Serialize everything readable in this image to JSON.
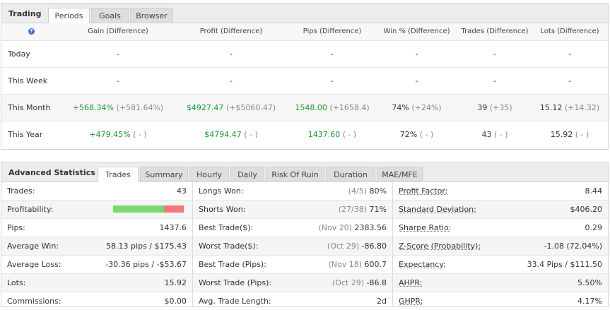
{
  "trading": {
    "title": "Trading",
    "tabs": [
      "Periods",
      "Goals",
      "Browser"
    ],
    "help_glyph": "?",
    "columns": [
      "Gain (Difference)",
      "Profit (Difference)",
      "Pips (Difference)",
      "Win % (Difference)",
      "Trades (Difference)",
      "Lots (Difference)"
    ],
    "rows": [
      {
        "label": "Today",
        "gain": "-",
        "gain_diff": "",
        "profit": "-",
        "profit_diff": "",
        "pips": "-",
        "pips_diff": "",
        "win": "-",
        "win_diff": "",
        "trades": "-",
        "trades_diff": "",
        "lots": "-",
        "lots_diff": ""
      },
      {
        "label": "This Week",
        "gain": "-",
        "gain_diff": "",
        "profit": "-",
        "profit_diff": "",
        "pips": "-",
        "pips_diff": "",
        "win": "-",
        "win_diff": "",
        "trades": "-",
        "trades_diff": "",
        "lots": "-",
        "lots_diff": ""
      },
      {
        "label": "This Month",
        "gain": "+568.34%",
        "gain_diff": "(+581.64%)",
        "profit": "$4927.47",
        "profit_diff": "(+$5060.47)",
        "pips": "1548.00",
        "pips_diff": "(+1658.4)",
        "win": "74%",
        "win_diff": "(+24%)",
        "trades": "39",
        "trades_diff": "(+35)",
        "lots": "15.12",
        "lots_diff": "(+14.32)"
      },
      {
        "label": "This Year",
        "gain": "+479.45%",
        "gain_diff": "( - )",
        "profit": "$4794.47",
        "profit_diff": "( - )",
        "pips": "1437.60",
        "pips_diff": "( - )",
        "win": "72%",
        "win_diff": "( - )",
        "trades": "43",
        "trades_diff": "( - )",
        "lots": "15.92",
        "lots_diff": "( - )"
      }
    ]
  },
  "advanced": {
    "title": "Advanced Statistics",
    "tabs": [
      "Trades",
      "Summary",
      "Hourly",
      "Daily",
      "Risk Of Ruin",
      "Duration",
      "MAE/MFE"
    ],
    "col1": [
      {
        "label": "Trades:",
        "value": "43"
      },
      {
        "label": "Profitability:",
        "value": ""
      },
      {
        "label": "Pips:",
        "value": "1437.6"
      },
      {
        "label": "Average Win:",
        "value": "58.13 pips / $175.43"
      },
      {
        "label": "Average Loss:",
        "value": "-30.36 pips / -$53.67"
      },
      {
        "label": "Lots:",
        "value": "15.92"
      },
      {
        "label": "Commissions:",
        "value": "$0.00"
      }
    ],
    "profitability_win_fraction": 0.72,
    "colors": {
      "win_bar": "#77d96b",
      "loss_bar": "#f07a7a",
      "positive": "#1a9a2e"
    },
    "col2": [
      {
        "label": "Longs Won:",
        "note": "(4/5)",
        "value": "80%"
      },
      {
        "label": "Shorts Won:",
        "note": "(27/38)",
        "value": "71%"
      },
      {
        "label": "Best Trade($):",
        "note": "(Nov 20)",
        "value": "2383.56"
      },
      {
        "label": "Worst Trade($):",
        "note": "(Oct 29)",
        "value": "-86.80"
      },
      {
        "label": "Best Trade (Pips):",
        "note": "(Nov 18)",
        "value": "600.7"
      },
      {
        "label": "Worst Trade (Pips):",
        "note": "(Oct 29)",
        "value": "-86.8"
      },
      {
        "label": "Avg. Trade Length:",
        "note": "",
        "value": "2d"
      }
    ],
    "col3": [
      {
        "label": "Profit Factor:",
        "value": "8.44"
      },
      {
        "label": "Standard Deviation:",
        "value": "$406.20"
      },
      {
        "label": "Sharpe Ratio:",
        "value": "0.29"
      },
      {
        "label": "Z-Score (Probability):",
        "value": "-1.08 (72.04%)"
      },
      {
        "label": "Expectancy:",
        "value": "33.4 Pips / $111.50"
      },
      {
        "label": "AHPR:",
        "value": "5.50%"
      },
      {
        "label": "GHPR:",
        "value": "4.17%"
      }
    ]
  }
}
